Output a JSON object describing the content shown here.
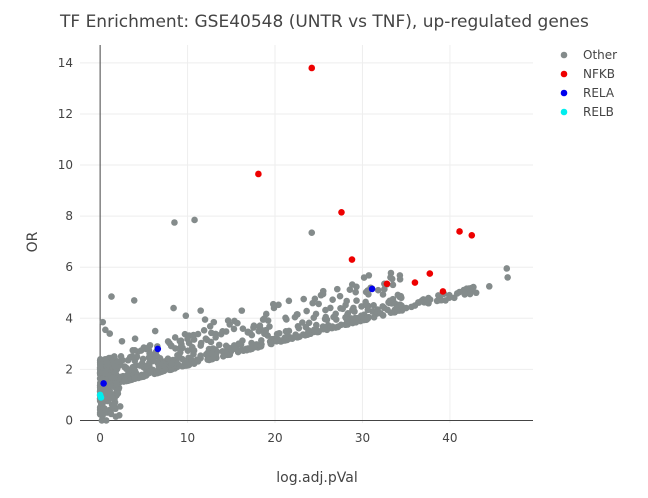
{
  "chart_data": {
    "type": "scatter",
    "title": "TF Enrichment: GSE40548 (UNTR vs TNF), up-regulated genes",
    "xlabel": "log.adj.pVal",
    "ylabel": "OR",
    "xlim": [
      -2.3,
      49.5
    ],
    "ylim": [
      -0.1,
      14.7
    ],
    "x_ticks": [
      0,
      10,
      20,
      30,
      40
    ],
    "y_ticks": [
      0,
      2,
      4,
      6,
      8,
      10,
      12,
      14
    ],
    "grid": true,
    "legend_position": "top-right",
    "colors": {
      "Other": "#848b8b",
      "NFKB": "#ee0000",
      "RELA": "#0000ee",
      "RELB": "#00eeee"
    },
    "series": [
      {
        "name": "Other",
        "points": [
          [
            1.3,
            4.85
          ],
          [
            3.9,
            4.7
          ],
          [
            8.5,
            7.75
          ],
          [
            10.8,
            7.85
          ],
          [
            24.2,
            7.35
          ],
          [
            25.5,
            4.95
          ],
          [
            31.8,
            5.1
          ],
          [
            32.5,
            5.35
          ],
          [
            33.2,
            5.6
          ],
          [
            46.5,
            5.95
          ],
          [
            46.6,
            5.6
          ],
          [
            44.5,
            5.25
          ],
          [
            43.0,
            5.0
          ],
          [
            42.3,
            4.95
          ],
          [
            40.5,
            4.8
          ],
          [
            39.5,
            4.7
          ],
          [
            37.5,
            4.6
          ],
          [
            36.0,
            4.5
          ],
          [
            35.0,
            4.4
          ],
          [
            34.0,
            4.3
          ],
          [
            8.4,
            4.4
          ],
          [
            9.8,
            4.1
          ],
          [
            11.5,
            4.3
          ],
          [
            12.0,
            3.95
          ],
          [
            13.0,
            3.85
          ],
          [
            16.2,
            4.3
          ],
          [
            19.8,
            4.55
          ],
          [
            22.5,
            4.15
          ],
          [
            25.8,
            4.05
          ],
          [
            27.0,
            3.95
          ],
          [
            0.3,
            3.85
          ],
          [
            0.6,
            3.55
          ],
          [
            1.1,
            3.4
          ],
          [
            2.5,
            3.1
          ],
          [
            4.0,
            3.2
          ],
          [
            6.3,
            3.5
          ],
          [
            5.5,
            2.85
          ],
          [
            0.9,
            0.35
          ],
          [
            1.8,
            0.15
          ],
          [
            2.3,
            0.55
          ],
          [
            0.2,
            0.0
          ],
          [
            0.7,
            0.0
          ]
        ]
      },
      {
        "name": "NFKB",
        "points": [
          [
            24.2,
            13.8
          ],
          [
            18.1,
            9.65
          ],
          [
            27.6,
            8.15
          ],
          [
            28.8,
            6.3
          ],
          [
            32.8,
            5.35
          ],
          [
            36.0,
            5.4
          ],
          [
            37.7,
            5.75
          ],
          [
            39.2,
            5.05
          ],
          [
            41.1,
            7.4
          ],
          [
            42.5,
            7.25
          ]
        ]
      },
      {
        "name": "RELA",
        "points": [
          [
            31.1,
            5.15
          ],
          [
            6.6,
            2.8
          ],
          [
            0.4,
            1.45
          ]
        ]
      },
      {
        "name": "RELB",
        "points": [
          [
            0.0,
            1.0
          ],
          [
            0.1,
            0.9
          ]
        ]
      }
    ]
  }
}
